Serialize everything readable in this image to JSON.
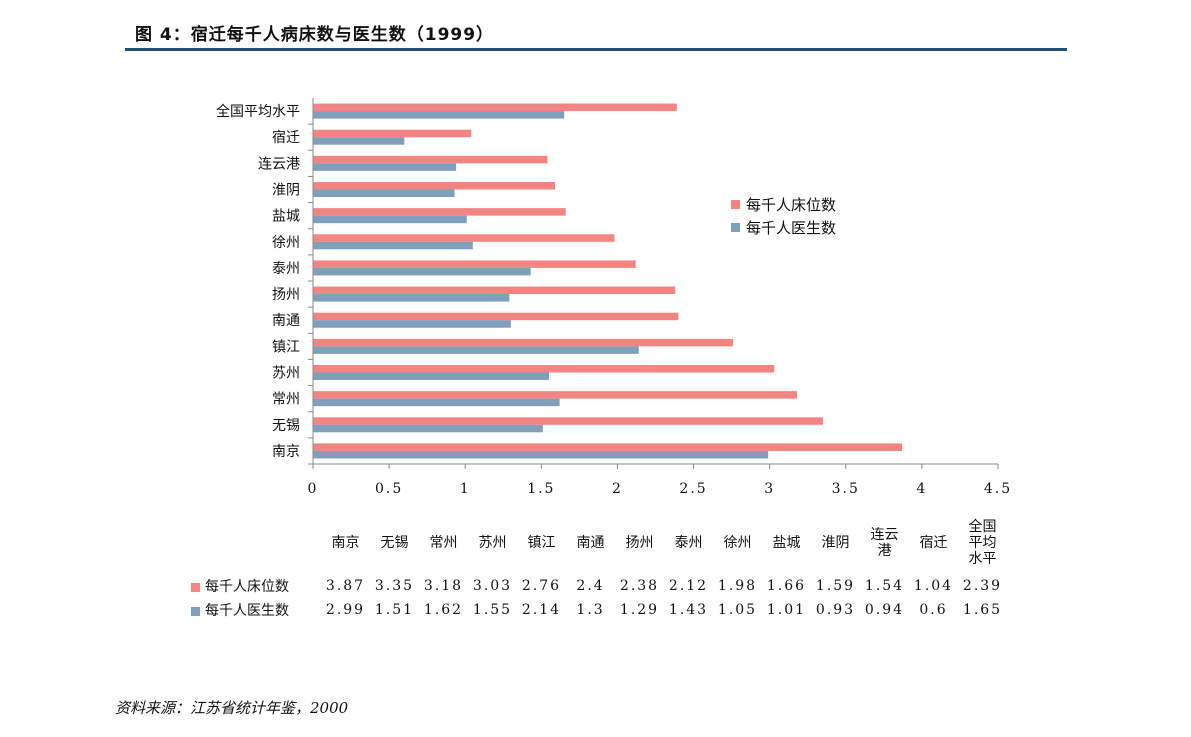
{
  "title": "图 4：宿迁每千人病床数与医生数（1999）",
  "source": "资料来源：江苏省统计年鉴，2000",
  "colors": {
    "beds": "#f28482",
    "doctors": "#7f9fbb",
    "title_rule": "#1f4e79"
  },
  "chart_data": {
    "type": "bar",
    "orientation": "horizontal",
    "categories": [
      "南京",
      "无锡",
      "常州",
      "苏州",
      "镇江",
      "南通",
      "扬州",
      "泰州",
      "徐州",
      "盐城",
      "淮阴",
      "连云港",
      "宿迁",
      "全国平均水平"
    ],
    "series": [
      {
        "name": "每千人床位数",
        "values": [
          3.87,
          3.35,
          3.18,
          3.03,
          2.76,
          2.4,
          2.38,
          2.12,
          1.98,
          1.66,
          1.59,
          1.54,
          1.04,
          2.39
        ]
      },
      {
        "name": "每千人医生数",
        "values": [
          2.99,
          1.51,
          1.62,
          1.55,
          2.14,
          1.3,
          1.29,
          1.43,
          1.05,
          1.01,
          0.93,
          0.94,
          0.6,
          1.65
        ]
      }
    ],
    "xlim": [
      0,
      4.5
    ],
    "xticks": [
      "0",
      "0.5",
      "1",
      "1.5",
      "2",
      "2.5",
      "3",
      "3.5",
      "4",
      "4.5"
    ],
    "grid": false,
    "legend": "right, upper middle"
  },
  "table": {
    "headers": [
      "南京",
      "无锡",
      "常州",
      "苏州",
      "镇江",
      "南通",
      "扬州",
      "泰州",
      "徐州",
      "盐城",
      "淮阴",
      "连云港",
      "宿迁",
      "全国平均水平"
    ],
    "header_lines": [
      [
        "南京"
      ],
      [
        "无锡"
      ],
      [
        "常州"
      ],
      [
        "苏州"
      ],
      [
        "镇江"
      ],
      [
        "南通"
      ],
      [
        "扬州"
      ],
      [
        "泰州"
      ],
      [
        "徐州"
      ],
      [
        "盐城"
      ],
      [
        "淮阴"
      ],
      [
        "连云",
        "港"
      ],
      [
        "宿迁"
      ],
      [
        "全国",
        "平均",
        "水平"
      ]
    ],
    "rows": [
      {
        "label": "每千人床位数",
        "values": [
          "3.87",
          "3.35",
          "3.18",
          "3.03",
          "2.76",
          "2.4",
          "2.38",
          "2.12",
          "1.98",
          "1.66",
          "1.59",
          "1.54",
          "1.04",
          "2.39"
        ]
      },
      {
        "label": "每千人医生数",
        "values": [
          "2.99",
          "1.51",
          "1.62",
          "1.55",
          "2.14",
          "1.3",
          "1.29",
          "1.43",
          "1.05",
          "1.01",
          "0.93",
          "0.94",
          "0.6",
          "1.65"
        ]
      }
    ]
  }
}
